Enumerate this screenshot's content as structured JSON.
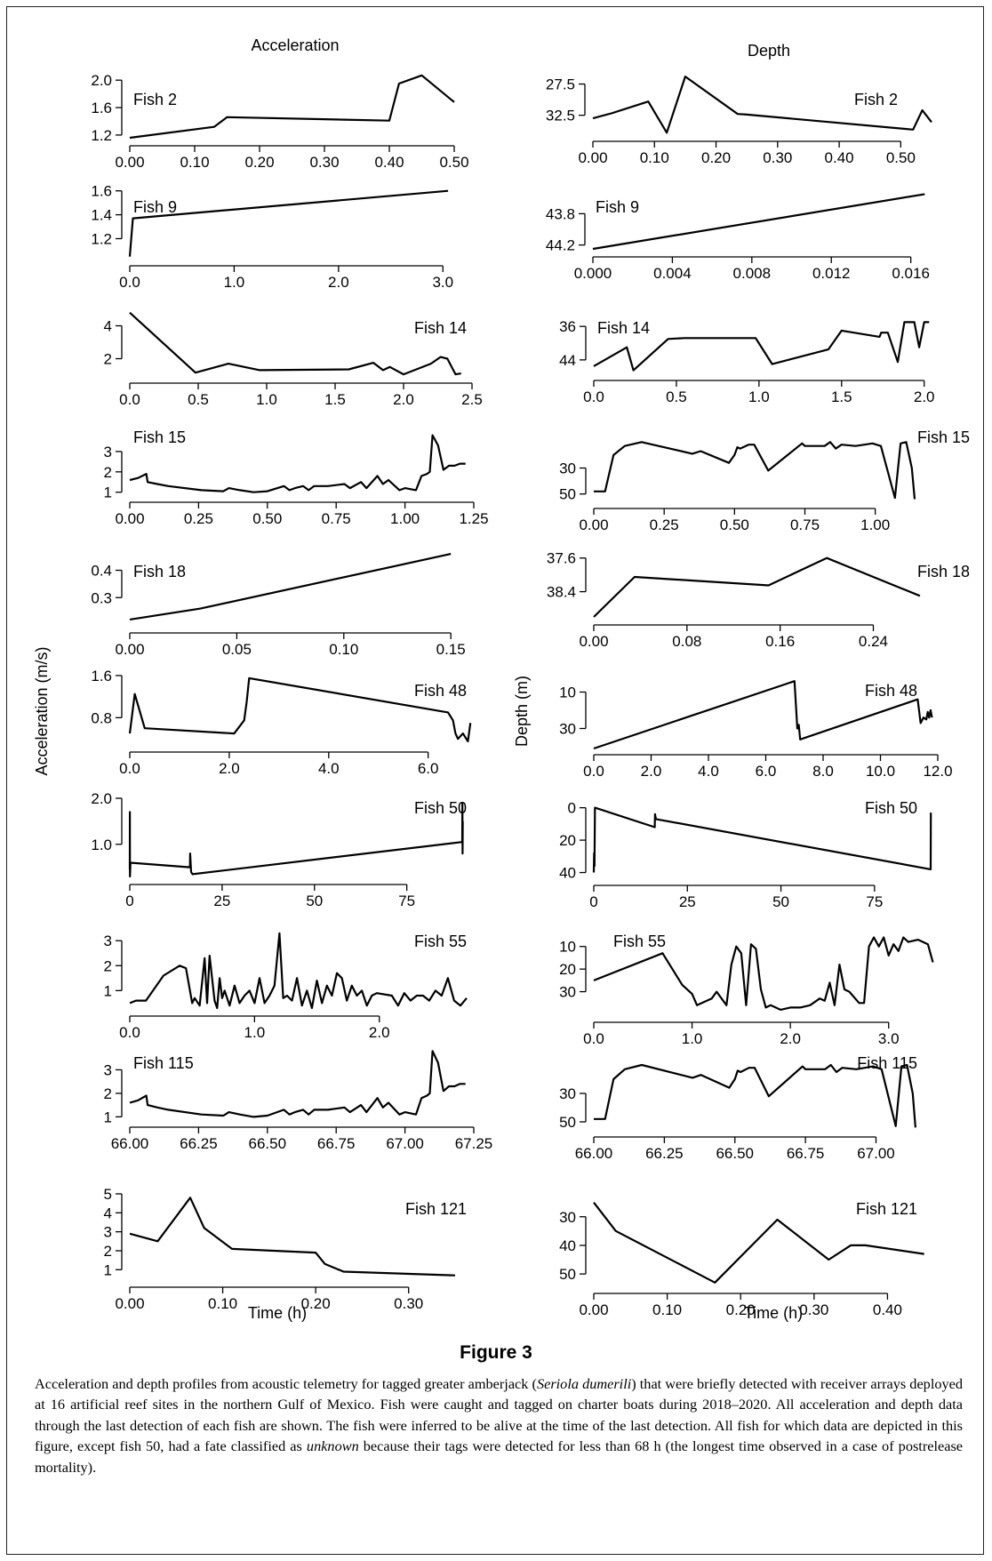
{
  "figure_label": "Figure 3",
  "caption": {
    "part1": "Acceleration and depth profiles from acoustic telemetry for tagged greater amberjack (",
    "species": "Seriola dumerili",
    "part2": ") that were briefly detected with receiver arrays deployed at 16 artificial reef sites in the northern Gulf of Mexico. Fish were caught and tagged on charter boats during 2018–2020. All acceleration and depth data through the last detection of each fish are shown. The fish were inferred to be alive at the time of the last detection. All fish for which data are depicted in this figure, except fish 50, had a fate classified as ",
    "fate": "unknown",
    "part3": " because their tags were detected for less than 68 h (the longest time observed in a case of postrelease mortality)."
  },
  "column_titles": [
    "Acceleration",
    "Depth"
  ],
  "y_axis_labels": [
    "Acceleration (m/s)",
    "Depth (m)"
  ],
  "x_axis_label": "Time (h)",
  "chart_data": [
    {
      "type": "line",
      "column": "acceleration",
      "fish": "Fish 2",
      "xlim": [
        0,
        0.5
      ],
      "ylim": [
        1.16,
        2.08
      ],
      "xticks": [
        "0.00",
        "0.10",
        "0.20",
        "0.30",
        "0.40",
        "0.50"
      ],
      "yticks": [
        "1.2",
        "1.6",
        "2.0"
      ],
      "x": [
        0,
        0.13,
        0.15,
        0.4,
        0.415,
        0.45,
        0.5
      ],
      "y": [
        1.16,
        1.32,
        1.46,
        1.41,
        1.95,
        2.07,
        1.68
      ]
    },
    {
      "type": "line",
      "column": "depth",
      "fish": "Fish 2",
      "inverted": true,
      "xlim": [
        0,
        0.55
      ],
      "ylim": [
        26,
        35.4
      ],
      "xticks": [
        "0.00",
        "0.10",
        "0.20",
        "0.30",
        "0.40",
        "0.50"
      ],
      "yticks": [
        "27.5",
        "32.5"
      ],
      "x": [
        0,
        0.03,
        0.09,
        0.12,
        0.15,
        0.235,
        0.25,
        0.52,
        0.535,
        0.55
      ],
      "y": [
        33,
        32.2,
        30.3,
        35.3,
        26.3,
        32.3,
        32.4,
        34.8,
        31.7,
        33.6
      ]
    },
    {
      "type": "line",
      "column": "acceleration",
      "fish": "Fish 9",
      "xlim": [
        0,
        3.1
      ],
      "ylim": [
        1.04,
        1.62
      ],
      "xticks": [
        "0.0",
        "1.0",
        "2.0",
        "3.0"
      ],
      "yticks": [
        "1.2",
        "1.4",
        "1.6"
      ],
      "x": [
        0,
        0.03,
        3.05
      ],
      "y": [
        1.05,
        1.37,
        1.6
      ]
    },
    {
      "type": "line",
      "column": "depth",
      "fish": "Fish 9",
      "inverted": true,
      "xlim": [
        0,
        0.017
      ],
      "ylim": [
        43.5,
        44.25
      ],
      "xticks": [
        "0.000",
        "0.004",
        "0.008",
        "0.012",
        "0.016"
      ],
      "yticks": [
        "43.8",
        "44.2"
      ],
      "x": [
        0,
        0.0167
      ],
      "y": [
        44.25,
        43.55
      ]
    },
    {
      "type": "line",
      "column": "acceleration",
      "fish": "Fish 14",
      "xlim": [
        0,
        2.5
      ],
      "ylim": [
        1.0,
        5.0
      ],
      "xticks": [
        "0.0",
        "0.5",
        "1.0",
        "1.5",
        "2.0",
        "2.5"
      ],
      "yticks": [
        "2",
        "4"
      ],
      "x": [
        0,
        0.48,
        0.72,
        0.95,
        1.6,
        1.78,
        1.85,
        1.9,
        2.0,
        2.2,
        2.27,
        2.32,
        2.38,
        2.42
      ],
      "y": [
        4.8,
        1.15,
        1.7,
        1.3,
        1.35,
        1.75,
        1.3,
        1.5,
        1.05,
        1.7,
        2.1,
        2.0,
        1.05,
        1.1
      ]
    },
    {
      "type": "line",
      "column": "depth",
      "fish": "Fish 14",
      "inverted": true,
      "xlim": [
        0,
        2.05
      ],
      "ylim": [
        33,
        47
      ],
      "xticks": [
        "0.0",
        "0.5",
        "1.0",
        "1.5",
        "2.0"
      ],
      "yticks": [
        "36",
        "44"
      ],
      "x": [
        0,
        0.2,
        0.24,
        0.45,
        0.55,
        0.98,
        1.08,
        1.42,
        1.5,
        1.73,
        1.74,
        1.78,
        1.84,
        1.88,
        1.94,
        1.97,
        2.0,
        2.03
      ],
      "y": [
        45.5,
        41,
        46.5,
        39,
        38.8,
        38.8,
        45,
        41.5,
        37,
        38.5,
        37.5,
        37.5,
        44.5,
        35,
        35,
        41,
        35,
        35
      ]
    },
    {
      "type": "line",
      "column": "acceleration",
      "fish": "Fish 15",
      "xlim": [
        0,
        1.25
      ],
      "ylim": [
        0.9,
        4.0
      ],
      "xticks": [
        "0.00",
        "0.25",
        "0.50",
        "0.75",
        "1.00",
        "1.25"
      ],
      "yticks": [
        "1",
        "2",
        "3"
      ],
      "x": [
        0,
        0.03,
        0.06,
        0.065,
        0.1,
        0.14,
        0.26,
        0.34,
        0.36,
        0.4,
        0.45,
        0.5,
        0.56,
        0.58,
        0.6,
        0.63,
        0.65,
        0.67,
        0.72,
        0.78,
        0.8,
        0.84,
        0.86,
        0.9,
        0.92,
        0.94,
        0.98,
        1.0,
        1.04,
        1.06,
        1.08,
        1.09,
        1.1,
        1.12,
        1.14,
        1.16,
        1.18,
        1.2,
        1.22
      ],
      "y": [
        1.6,
        1.7,
        1.9,
        1.5,
        1.4,
        1.3,
        1.1,
        1.05,
        1.2,
        1.1,
        1.0,
        1.05,
        1.3,
        1.1,
        1.2,
        1.3,
        1.1,
        1.3,
        1.3,
        1.4,
        1.2,
        1.5,
        1.2,
        1.8,
        1.4,
        1.6,
        1.1,
        1.2,
        1.1,
        1.8,
        1.9,
        2.0,
        3.8,
        3.3,
        2.1,
        2.3,
        2.3,
        2.4,
        2.4
      ]
    },
    {
      "type": "line",
      "column": "depth",
      "fish": "Fish 15",
      "inverted": true,
      "xlim": [
        0,
        1.2
      ],
      "ylim": [
        5,
        55
      ],
      "xticks": [
        "0.00",
        "0.25",
        "0.50",
        "0.75",
        "1.00"
      ],
      "yticks": [
        "30",
        "50"
      ],
      "x": [
        0,
        0.04,
        0.07,
        0.11,
        0.17,
        0.35,
        0.38,
        0.48,
        0.5,
        0.51,
        0.52,
        0.55,
        0.57,
        0.62,
        0.74,
        0.75,
        0.82,
        0.84,
        0.86,
        0.88,
        0.93,
        0.99,
        1.02,
        1.07,
        1.09,
        1.11,
        1.13,
        1.14
      ],
      "y": [
        48,
        48,
        20,
        13,
        10,
        19,
        17,
        26,
        20,
        14,
        15,
        12,
        12,
        32,
        11,
        13,
        13,
        10,
        15,
        12,
        13,
        11,
        13,
        53,
        11,
        10,
        30,
        54
      ]
    },
    {
      "type": "line",
      "column": "acceleration",
      "fish": "Fish 18",
      "xlim": [
        0,
        0.152
      ],
      "ylim": [
        0.2,
        0.47
      ],
      "xticks": [
        "0.00",
        "0.05",
        "0.10",
        "0.15"
      ],
      "yticks": [
        "0.3",
        "0.4"
      ],
      "x": [
        0,
        0.033,
        0.15
      ],
      "y": [
        0.22,
        0.26,
        0.46
      ]
    },
    {
      "type": "line",
      "column": "depth",
      "fish": "Fish 18",
      "inverted": true,
      "xlim": [
        0,
        0.29
      ],
      "ylim": [
        37.5,
        39.0
      ],
      "xticks": [
        "0.00",
        "0.08",
        "0.16",
        "0.24"
      ],
      "yticks": [
        "37.6",
        "38.4"
      ],
      "x": [
        0,
        0.035,
        0.15,
        0.2,
        0.28
      ],
      "y": [
        39.0,
        38.05,
        38.25,
        37.6,
        38.5
      ]
    },
    {
      "type": "line",
      "column": "acceleration",
      "fish": "Fish 48",
      "xlim": [
        0,
        6.9
      ],
      "ylim": [
        0.3,
        1.7
      ],
      "xticks": [
        "0.0",
        "2.0",
        "4.0",
        "6.0"
      ],
      "yticks": [
        "0.8",
        "1.6"
      ],
      "x": [
        0,
        0.1,
        0.3,
        2.1,
        2.3,
        2.35,
        2.4,
        6.4,
        6.5,
        6.55,
        6.6,
        6.7,
        6.8,
        6.85
      ],
      "y": [
        0.5,
        1.25,
        0.6,
        0.5,
        0.75,
        1.1,
        1.55,
        0.9,
        0.75,
        0.5,
        0.4,
        0.5,
        0.35,
        0.7
      ]
    },
    {
      "type": "line",
      "column": "depth",
      "fish": "Fish 48",
      "inverted": true,
      "xlim": [
        0,
        12
      ],
      "ylim": [
        0,
        40
      ],
      "xticks": [
        "0.0",
        "2.0",
        "4.0",
        "6.0",
        "8.0",
        "10.0",
        "12.0"
      ],
      "yticks": [
        "10",
        "30"
      ],
      "x": [
        0,
        7.0,
        7.1,
        7.15,
        7.2,
        11.3,
        11.4,
        11.5,
        11.6,
        11.65,
        11.7,
        11.75,
        11.8
      ],
      "y": [
        41,
        4,
        30,
        28,
        36,
        14,
        27,
        24,
        25,
        21,
        24,
        20,
        24
      ]
    },
    {
      "type": "line",
      "column": "acceleration",
      "fish": "Fish 50",
      "xlim": [
        0,
        90
      ],
      "ylim": [
        0.3,
        2.0
      ],
      "xticks": [
        "0",
        "25",
        "50",
        "75"
      ],
      "yticks": [
        "1.0",
        "2.0"
      ],
      "x": [
        0,
        0.02,
        0.05,
        0.2,
        16.3,
        16.35,
        16.6,
        17,
        90,
        90.05,
        90.1,
        90.15
      ],
      "y": [
        0.45,
        1.7,
        0.3,
        0.6,
        0.5,
        0.8,
        0.4,
        0.35,
        1.05,
        1.9,
        0.8,
        1.5
      ]
    },
    {
      "type": "line",
      "column": "depth",
      "fish": "Fish 50",
      "inverted": true,
      "xlim": [
        0,
        90
      ],
      "ylim": [
        -2,
        43
      ],
      "xticks": [
        "0",
        "25",
        "50",
        "75"
      ],
      "yticks": [
        "0",
        "20",
        "40"
      ],
      "x": [
        0,
        0.1,
        0.2,
        0.3,
        16.3,
        16.35,
        16.6,
        90,
        90.05
      ],
      "y": [
        40,
        28,
        36,
        0,
        12,
        4,
        7,
        38,
        3
      ]
    },
    {
      "type": "line",
      "column": "acceleration",
      "fish": "Fish 55",
      "xlim": [
        0,
        2.75
      ],
      "ylim": [
        0.3,
        3.4
      ],
      "xticks": [
        "0.0",
        "1.0",
        "2.0"
      ],
      "yticks": [
        "1",
        "2",
        "3"
      ],
      "x": [
        0,
        0.05,
        0.13,
        0.27,
        0.4,
        0.45,
        0.5,
        0.52,
        0.56,
        0.6,
        0.62,
        0.64,
        0.68,
        0.7,
        0.72,
        0.74,
        0.76,
        0.8,
        0.84,
        0.88,
        0.92,
        0.96,
        1.0,
        1.04,
        1.08,
        1.12,
        1.16,
        1.2,
        1.23,
        1.26,
        1.3,
        1.34,
        1.38,
        1.42,
        1.46,
        1.5,
        1.54,
        1.58,
        1.62,
        1.66,
        1.7,
        1.74,
        1.78,
        1.82,
        1.86,
        1.9,
        1.94,
        1.98,
        2.1,
        2.15,
        2.2,
        2.25,
        2.3,
        2.35,
        2.4,
        2.45,
        2.5,
        2.55,
        2.6,
        2.65,
        2.7
      ],
      "y": [
        0.5,
        0.6,
        0.6,
        1.6,
        2.0,
        1.9,
        0.5,
        0.7,
        0.4,
        2.3,
        0.5,
        2.4,
        0.6,
        0.3,
        1.5,
        0.7,
        1.0,
        0.4,
        1.2,
        0.5,
        0.8,
        1.0,
        0.5,
        1.5,
        0.5,
        0.8,
        1.2,
        3.3,
        0.7,
        0.8,
        0.6,
        1.5,
        0.4,
        1.0,
        0.3,
        1.4,
        0.5,
        1.2,
        0.8,
        1.7,
        1.5,
        0.6,
        1.2,
        0.8,
        1.0,
        0.4,
        0.8,
        0.9,
        0.8,
        0.4,
        0.9,
        0.6,
        0.8,
        0.8,
        0.6,
        1.0,
        0.8,
        1.5,
        0.6,
        0.4,
        0.7
      ]
    },
    {
      "type": "line",
      "column": "depth",
      "fish": "Fish 55",
      "inverted": true,
      "xlim": [
        0,
        3.5
      ],
      "ylim": [
        5,
        40
      ],
      "xticks": [
        "0.0",
        "1.0",
        "2.0",
        "3.0"
      ],
      "yticks": [
        "10",
        "20",
        "30"
      ],
      "x": [
        0,
        0.7,
        0.9,
        1.0,
        1.05,
        1.2,
        1.25,
        1.35,
        1.4,
        1.45,
        1.5,
        1.55,
        1.6,
        1.65,
        1.7,
        1.75,
        1.8,
        1.9,
        2.0,
        2.1,
        2.2,
        2.3,
        2.35,
        2.4,
        2.45,
        2.5,
        2.55,
        2.6,
        2.7,
        2.75,
        2.8,
        2.85,
        2.9,
        2.95,
        3.0,
        3.05,
        3.1,
        3.15,
        3.2,
        3.3,
        3.4,
        3.45
      ],
      "y": [
        25,
        13,
        27,
        31,
        36,
        33,
        30,
        36,
        18,
        10,
        13,
        36,
        9,
        11,
        29,
        37,
        36,
        38,
        37,
        37,
        36,
        33,
        34,
        26,
        36,
        18,
        29,
        30,
        35,
        35,
        10,
        6,
        10,
        6,
        14,
        9,
        12,
        6,
        8,
        7,
        9,
        17
      ]
    },
    {
      "type": "line",
      "column": "acceleration",
      "fish": "Fish 115",
      "xlim": [
        66,
        67.25
      ],
      "ylim": [
        0.9,
        4.0
      ],
      "xticks": [
        "66.00",
        "66.25",
        "66.50",
        "66.75",
        "67.00",
        "67.25"
      ],
      "yticks": [
        "1",
        "2",
        "3"
      ],
      "x": [
        66,
        66.03,
        66.06,
        66.065,
        66.1,
        66.14,
        66.26,
        66.34,
        66.36,
        66.4,
        66.45,
        66.5,
        66.56,
        66.58,
        66.6,
        66.63,
        66.65,
        66.67,
        66.72,
        66.78,
        66.8,
        66.84,
        66.86,
        66.9,
        66.92,
        66.94,
        66.98,
        67.0,
        67.04,
        67.06,
        67.08,
        67.09,
        67.1,
        67.12,
        67.14,
        67.16,
        67.18,
        67.2,
        67.22
      ],
      "y": [
        1.6,
        1.7,
        1.9,
        1.5,
        1.4,
        1.3,
        1.1,
        1.05,
        1.2,
        1.1,
        1.0,
        1.05,
        1.3,
        1.1,
        1.2,
        1.3,
        1.1,
        1.3,
        1.3,
        1.4,
        1.2,
        1.5,
        1.2,
        1.8,
        1.4,
        1.6,
        1.1,
        1.2,
        1.1,
        1.8,
        1.9,
        2.0,
        3.8,
        3.3,
        2.1,
        2.3,
        2.3,
        2.4,
        2.4
      ]
    },
    {
      "type": "line",
      "column": "depth",
      "fish": "Fish 115",
      "inverted": true,
      "xlim": [
        66,
        67.2
      ],
      "ylim": [
        5,
        55
      ],
      "xticks": [
        "66.00",
        "66.25",
        "66.50",
        "66.75",
        "67.00"
      ],
      "yticks": [
        "30",
        "50"
      ],
      "x": [
        66,
        66.04,
        66.07,
        66.11,
        66.17,
        66.35,
        66.38,
        66.48,
        66.5,
        66.51,
        66.52,
        66.55,
        66.57,
        66.62,
        66.74,
        66.75,
        66.82,
        66.84,
        66.86,
        66.88,
        66.93,
        66.99,
        67.02,
        67.07,
        67.09,
        67.11,
        67.13,
        67.14
      ],
      "y": [
        48,
        48,
        20,
        13,
        10,
        19,
        17,
        26,
        20,
        14,
        15,
        12,
        12,
        32,
        11,
        13,
        13,
        10,
        15,
        12,
        13,
        11,
        13,
        53,
        11,
        10,
        30,
        54
      ]
    },
    {
      "type": "line",
      "column": "acceleration",
      "fish": "Fish 121",
      "xlim": [
        0,
        0.35
      ],
      "ylim": [
        0.5,
        5.0
      ],
      "xticks": [
        "0.00",
        "0.10",
        "0.20",
        "0.30"
      ],
      "yticks": [
        "1",
        "2",
        "3",
        "4",
        "5"
      ],
      "x": [
        0,
        0.03,
        0.065,
        0.08,
        0.11,
        0.2,
        0.21,
        0.23,
        0.35
      ],
      "y": [
        2.9,
        2.5,
        4.8,
        3.2,
        2.1,
        1.9,
        1.3,
        0.9,
        0.7
      ]
    },
    {
      "type": "line",
      "column": "depth",
      "fish": "Fish 121",
      "inverted": true,
      "xlim": [
        0,
        0.46
      ],
      "ylim": [
        22,
        54
      ],
      "xticks": [
        "0.00",
        "0.10",
        "0.20",
        "0.30",
        "0.40"
      ],
      "yticks": [
        "30",
        "40",
        "50"
      ],
      "x": [
        0,
        0.03,
        0.165,
        0.25,
        0.32,
        0.35,
        0.37,
        0.45
      ],
      "y": [
        25,
        35,
        53,
        31,
        45,
        40,
        40,
        43
      ]
    }
  ]
}
